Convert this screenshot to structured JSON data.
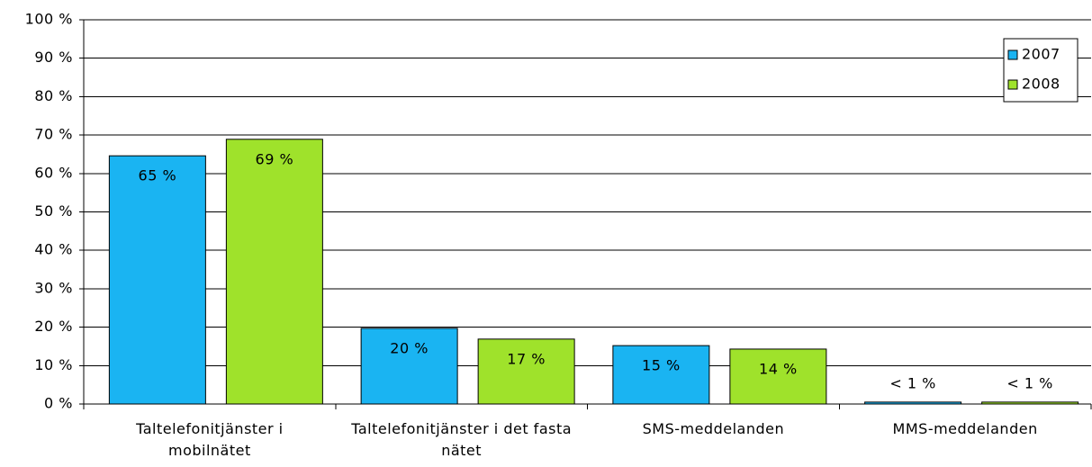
{
  "chart_data": {
    "type": "bar",
    "categories": [
      "Taltelefonitjänster i mobilnätet",
      "Taltelefonitjänster i det fasta nätet",
      "SMS-meddelanden",
      "MMS-meddelanden"
    ],
    "series": [
      {
        "name": "2007",
        "color": "#1ab4f2",
        "values": [
          64.6,
          19.7,
          15.2,
          0.5
        ],
        "value_labels": [
          "65 %",
          "20 %",
          "15 %",
          "< 1 %"
        ]
      },
      {
        "name": "2008",
        "color": "#9fe22b",
        "values": [
          68.9,
          16.9,
          14.3,
          0.5
        ],
        "value_labels": [
          "69 %",
          "17 %",
          "14 %",
          "< 1 %"
        ]
      }
    ],
    "ylim": [
      0,
      100
    ],
    "yticks": [
      {
        "value": 0,
        "label": "0 %"
      },
      {
        "value": 10,
        "label": "10 %"
      },
      {
        "value": 20,
        "label": "20 %"
      },
      {
        "value": 30,
        "label": "30 %"
      },
      {
        "value": 40,
        "label": "40 %"
      },
      {
        "value": 50,
        "label": "50 %"
      },
      {
        "value": 60,
        "label": "60 %"
      },
      {
        "value": 70,
        "label": "70 %"
      },
      {
        "value": 80,
        "label": "80 %"
      },
      {
        "value": 90,
        "label": "90 %"
      },
      {
        "value": 100,
        "label": "100 %"
      }
    ],
    "grid": true,
    "legend": "top-right"
  }
}
